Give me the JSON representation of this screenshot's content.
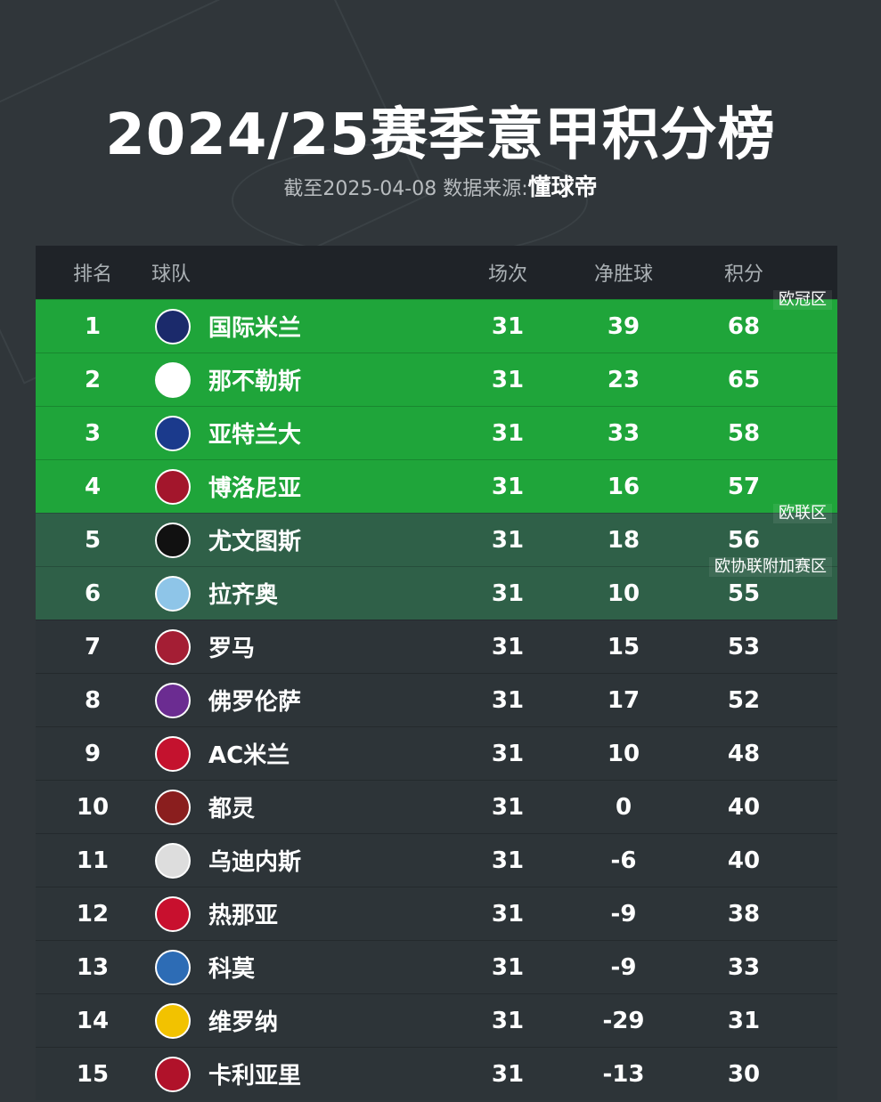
{
  "title": "2024/25赛季意甲积分榜",
  "subtitle": {
    "prefix": "截至2025-04-08 数据来源:",
    "source": "懂球帝"
  },
  "headers": {
    "rank": "排名",
    "team": "球队",
    "played": "场次",
    "gd": "净胜球",
    "pts": "积分"
  },
  "colors": {
    "ucl": "#1fa53a",
    "uel": "#2f6048",
    "default": "#2d3438",
    "header": "#1f2328"
  },
  "rows": [
    {
      "rank": "1",
      "team": "国际米兰",
      "played": "31",
      "gd": "39",
      "pts": "68",
      "zone": "ucl",
      "badge": "欧冠区",
      "logo": "inter-logo",
      "lc": "#1b2a6b"
    },
    {
      "rank": "2",
      "team": "那不勒斯",
      "played": "31",
      "gd": "23",
      "pts": "65",
      "zone": "ucl",
      "logo": "napoli-logo",
      "lc": "#ffffff"
    },
    {
      "rank": "3",
      "team": "亚特兰大",
      "played": "31",
      "gd": "33",
      "pts": "58",
      "zone": "ucl",
      "logo": "atalanta-logo",
      "lc": "#1b3a8c"
    },
    {
      "rank": "4",
      "team": "博洛尼亚",
      "played": "31",
      "gd": "16",
      "pts": "57",
      "zone": "ucl",
      "logo": "bologna-logo",
      "lc": "#a3162c"
    },
    {
      "rank": "5",
      "team": "尤文图斯",
      "played": "31",
      "gd": "18",
      "pts": "56",
      "zone": "uel",
      "badge": "欧联区",
      "logo": "juventus-logo",
      "lc": "#111111"
    },
    {
      "rank": "6",
      "team": "拉齐奥",
      "played": "31",
      "gd": "10",
      "pts": "55",
      "zone": "uel",
      "badge": "欧协联附加赛区",
      "logo": "lazio-logo",
      "lc": "#8ec5e8"
    },
    {
      "rank": "7",
      "team": "罗马",
      "played": "31",
      "gd": "15",
      "pts": "53",
      "zone": "default",
      "logo": "roma-logo",
      "lc": "#a41e34"
    },
    {
      "rank": "8",
      "team": "佛罗伦萨",
      "played": "31",
      "gd": "17",
      "pts": "52",
      "zone": "default",
      "logo": "fiorentina-logo",
      "lc": "#6b2c91"
    },
    {
      "rank": "9",
      "team": "AC米兰",
      "played": "31",
      "gd": "10",
      "pts": "48",
      "zone": "default",
      "logo": "milan-logo",
      "lc": "#c4122e"
    },
    {
      "rank": "10",
      "team": "都灵",
      "played": "31",
      "gd": "0",
      "pts": "40",
      "zone": "default",
      "logo": "torino-logo",
      "lc": "#8a1e1e"
    },
    {
      "rank": "11",
      "team": "乌迪内斯",
      "played": "31",
      "gd": "-6",
      "pts": "40",
      "zone": "default",
      "logo": "udinese-logo",
      "lc": "#dddddd"
    },
    {
      "rank": "12",
      "team": "热那亚",
      "played": "31",
      "gd": "-9",
      "pts": "38",
      "zone": "default",
      "logo": "genoa-logo",
      "lc": "#c8102e"
    },
    {
      "rank": "13",
      "team": "科莫",
      "played": "31",
      "gd": "-9",
      "pts": "33",
      "zone": "default",
      "logo": "como-logo",
      "lc": "#2d6cb5"
    },
    {
      "rank": "14",
      "team": "维罗纳",
      "played": "31",
      "gd": "-29",
      "pts": "31",
      "zone": "default",
      "logo": "verona-logo",
      "lc": "#f2c200"
    },
    {
      "rank": "15",
      "team": "卡利亚里",
      "played": "31",
      "gd": "-13",
      "pts": "30",
      "zone": "default",
      "logo": "cagliari-logo",
      "lc": "#b0122a"
    }
  ]
}
